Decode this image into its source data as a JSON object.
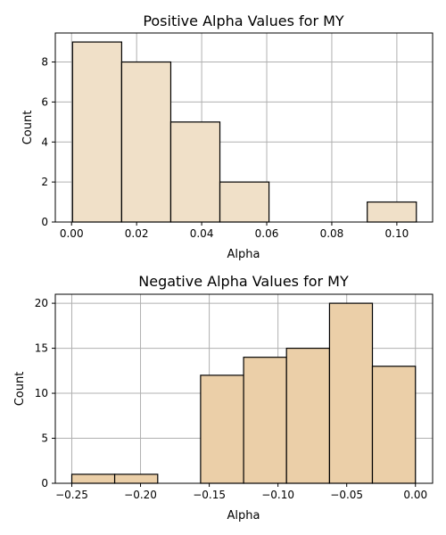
{
  "chart_data": [
    {
      "type": "bar",
      "title": "Positive Alpha Values for MY",
      "xlabel": "Alpha",
      "ylabel": "Count",
      "xlim": [
        -0.005,
        0.111
      ],
      "ylim": [
        0,
        9.45
      ],
      "xticks": [
        0.0,
        0.02,
        0.04,
        0.06,
        0.08,
        0.1
      ],
      "xtick_labels": [
        "0.00",
        "0.02",
        "0.04",
        "0.06",
        "0.08",
        "0.10"
      ],
      "yticks": [
        0,
        2,
        4,
        6,
        8
      ],
      "ytick_labels": [
        "0",
        "2",
        "4",
        "6",
        "8"
      ],
      "grid": true,
      "bar_color": "#f0e0c8",
      "bins": [
        {
          "x0": 0.0003,
          "x1": 0.0154,
          "count": 9
        },
        {
          "x0": 0.0154,
          "x1": 0.0305,
          "count": 8
        },
        {
          "x0": 0.0305,
          "x1": 0.0456,
          "count": 5
        },
        {
          "x0": 0.0456,
          "x1": 0.0607,
          "count": 2
        },
        {
          "x0": 0.0607,
          "x1": 0.0758,
          "count": 0
        },
        {
          "x0": 0.0758,
          "x1": 0.0909,
          "count": 0
        },
        {
          "x0": 0.0909,
          "x1": 0.106,
          "count": 1
        }
      ]
    },
    {
      "type": "bar",
      "title": "Negative Alpha Values for MY",
      "xlabel": "Alpha",
      "ylabel": "Count",
      "xlim": [
        -0.262,
        0.0125
      ],
      "ylim": [
        0,
        21
      ],
      "xticks": [
        -0.25,
        -0.2,
        -0.15,
        -0.1,
        -0.05,
        0.0
      ],
      "xtick_labels": [
        "−0.25",
        "−0.20",
        "−0.15",
        "−0.10",
        "−0.05",
        "0.00"
      ],
      "yticks": [
        0,
        5,
        10,
        15,
        20
      ],
      "ytick_labels": [
        "0",
        "5",
        "10",
        "15",
        "20"
      ],
      "grid": true,
      "bar_color": "#ebcfa8",
      "bins": [
        {
          "x0": -0.25,
          "x1": -0.2188,
          "count": 1
        },
        {
          "x0": -0.2188,
          "x1": -0.1875,
          "count": 1
        },
        {
          "x0": -0.1875,
          "x1": -0.1563,
          "count": 0
        },
        {
          "x0": -0.1563,
          "x1": -0.125,
          "count": 12
        },
        {
          "x0": -0.125,
          "x1": -0.0938,
          "count": 14
        },
        {
          "x0": -0.0938,
          "x1": -0.0625,
          "count": 15
        },
        {
          "x0": -0.0625,
          "x1": -0.0313,
          "count": 20
        },
        {
          "x0": -0.0313,
          "x1": 0.0,
          "count": 13
        }
      ]
    }
  ]
}
